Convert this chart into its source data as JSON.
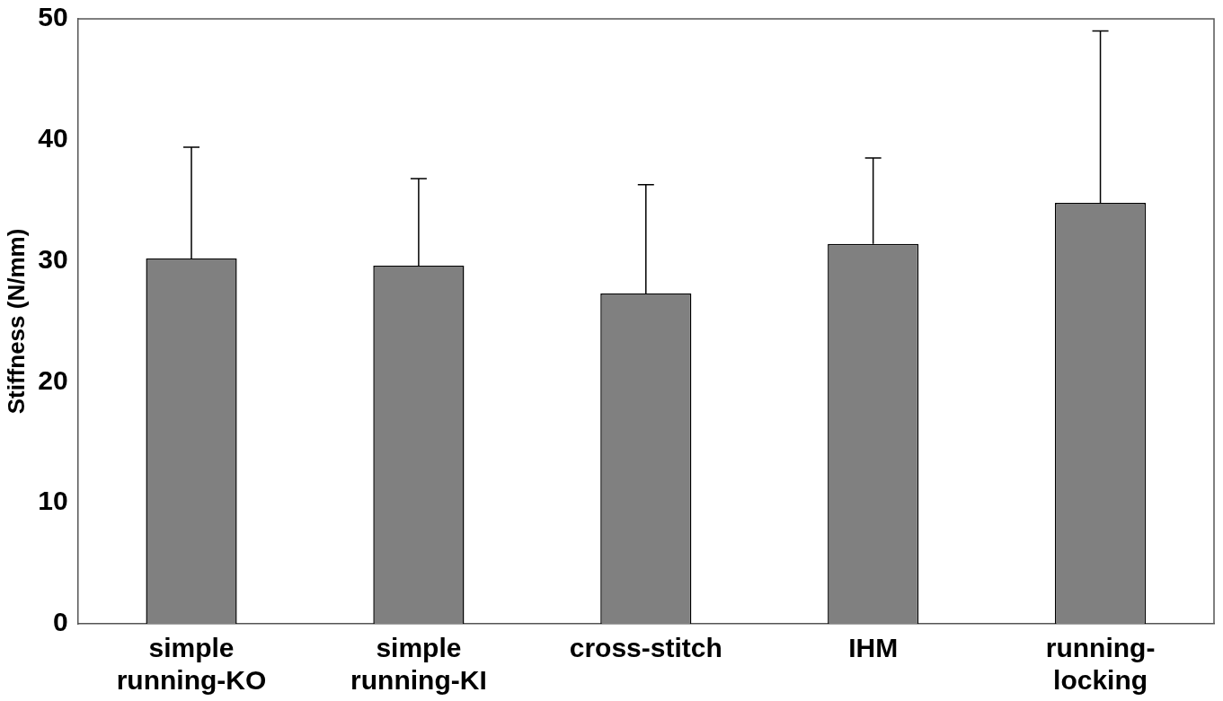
{
  "chart_data": {
    "type": "bar",
    "ylabel": "Stiffness (N/mm)",
    "categories": [
      "simple running-KO",
      "simple running-KI",
      "cross-stitch",
      "IHM",
      "running-locking"
    ],
    "values": [
      30.2,
      29.6,
      27.3,
      31.4,
      34.8
    ],
    "errors": [
      [
        30.2,
        39.4
      ],
      [
        29.6,
        36.8
      ],
      [
        27.3,
        36.3
      ],
      [
        31.4,
        38.5
      ],
      [
        34.8,
        49.0
      ]
    ],
    "color": "#808080",
    "ylim": [
      0,
      50
    ],
    "yticks": [
      0,
      10,
      20,
      30,
      40,
      50
    ],
    "grid": false,
    "legend": false
  }
}
